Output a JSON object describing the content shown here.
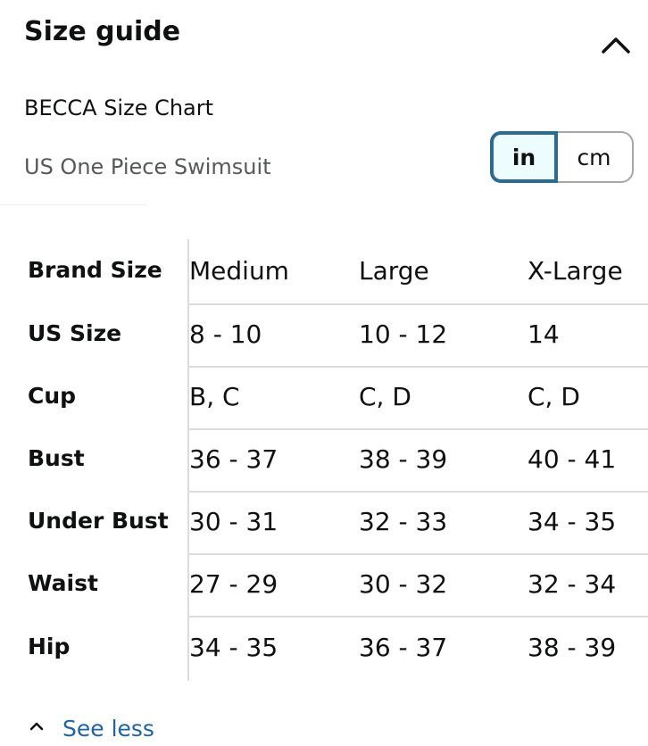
{
  "header": {
    "title": "Size guide",
    "collapse_icon": "chevron-up-icon"
  },
  "chart": {
    "title": "BECCA Size Chart",
    "subtitle": "US One Piece Swimsuit"
  },
  "unit_toggle": {
    "options": [
      "in",
      "cm"
    ],
    "selected": "in",
    "accent_color": "#2d6a8f"
  },
  "table": {
    "rows": [
      {
        "label": "Brand Size",
        "values": [
          "Medium",
          "Large",
          "X-Large"
        ]
      },
      {
        "label": "US Size",
        "values": [
          "8 - 10",
          "10 - 12",
          "14"
        ]
      },
      {
        "label": "Cup",
        "values": [
          "B, C",
          "C, D",
          "C, D"
        ]
      },
      {
        "label": "Bust",
        "values": [
          "36 - 37",
          "38 - 39",
          "40 - 41"
        ]
      },
      {
        "label": "Under Bust",
        "values": [
          "30 - 31",
          "32 - 33",
          "34 - 35"
        ]
      },
      {
        "label": "Waist",
        "values": [
          "27 - 29",
          "30 - 32",
          "32 - 34"
        ]
      },
      {
        "label": "Hip",
        "values": [
          "34 - 35",
          "36 - 37",
          "38 - 39"
        ]
      }
    ]
  },
  "footer": {
    "see_less_label": "See less",
    "see_less_icon": "chevron-up-icon",
    "link_color": "#2162a1"
  }
}
